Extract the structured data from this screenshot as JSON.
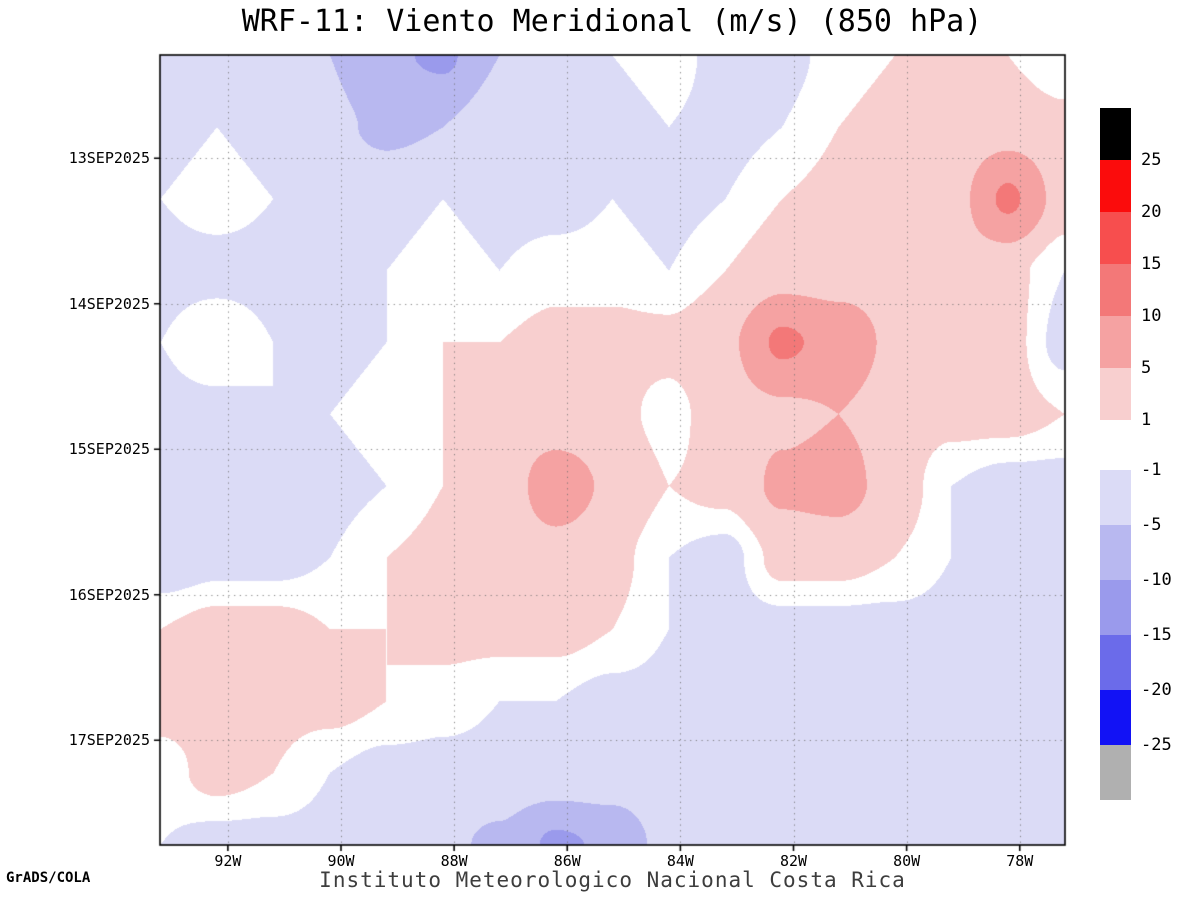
{
  "page": {
    "title": "WRF-11: Viento Meridional (m/s) (850 hPa)",
    "credit": "GrADS/COLA",
    "caption": "Instituto Meteorologico Nacional Costa Rica"
  },
  "chart_data": {
    "type": "heatmap",
    "title": "WRF-11: Viento Meridional (m/s) (850 hPa)",
    "variable": "meridional wind (viento meridional)",
    "units": "m/s",
    "level": "850 hPa",
    "xlabel": "longitude",
    "ylabel": "date (time increasing downward)",
    "x_ticks": [
      "92W",
      "90W",
      "88W",
      "86W",
      "84W",
      "82W",
      "80W",
      "78W"
    ],
    "y_ticks": [
      "13SEP2025",
      "14SEP2025",
      "15SEP2025",
      "16SEP2025",
      "17SEP2025"
    ],
    "x_tick_values_deg_west": [
      92,
      90,
      88,
      86,
      84,
      82,
      80,
      78
    ],
    "y_tick_values_days_sep2025": [
      13,
      14,
      15,
      16,
      17
    ],
    "x_range_deg_west": [
      93.2,
      77.2
    ],
    "y_range_days_sep2025": [
      12.29,
      17.72
    ],
    "gridlines": "dotted",
    "legend": {
      "position": "right",
      "labels_top_group": [
        "25",
        "20",
        "15",
        "10",
        "5",
        "1"
      ],
      "labels_bottom_group": [
        "-1",
        "-5",
        "-10",
        "-15",
        "-20",
        "-25"
      ],
      "levels": [
        -25,
        -20,
        -15,
        -10,
        -5,
        -1,
        1,
        5,
        10,
        15,
        20,
        25
      ],
      "bin_colors_low_to_high": [
        "#b0b0b0",
        "#1212f5",
        "#6b6bea",
        "#9a9aec",
        "#b8b8f0",
        "#dbdbf6",
        "#ffffff",
        "#f8cfcf",
        "#f5a2a2",
        "#f37878",
        "#f74e4e",
        "#fb0c0c",
        "#000000"
      ]
    },
    "field": {
      "comment": "Estimated meridional wind (m/s) on a coarse lon-time grid read from the shaded contours; rows are times top-to-bottom, columns are longitudes west-to-east.",
      "lon_deg_west": [
        93.2,
        92.2,
        91.2,
        90.2,
        89.2,
        88.2,
        87.2,
        86.2,
        85.2,
        84.2,
        83.2,
        82.2,
        81.2,
        80.2,
        79.2,
        78.2,
        77.2
      ],
      "time_days_sep2025": [
        12.29,
        12.78,
        13.28,
        13.77,
        14.26,
        14.76,
        15.25,
        15.75,
        16.24,
        16.73,
        17.23,
        17.72
      ],
      "values_by_time_row": [
        [
          -2,
          -2,
          -3,
          -5,
          -9,
          -11,
          -5,
          -2,
          -1,
          0,
          -2,
          -2,
          0,
          1,
          2,
          1,
          -1
        ],
        [
          -2,
          -1,
          -2,
          -4,
          -6,
          -5,
          -2,
          -2,
          -2,
          -1,
          -2,
          -1,
          1,
          2,
          2,
          3,
          2
        ],
        [
          -1,
          0,
          -1,
          -2,
          -2,
          -1,
          -2,
          -2,
          -1,
          -2,
          -1,
          1,
          2,
          2,
          3,
          11,
          3
        ],
        [
          -2,
          -2,
          -2,
          -2,
          -1,
          0,
          -1,
          0,
          0,
          -1,
          1,
          3,
          3,
          3,
          3,
          2,
          -1
        ],
        [
          -1,
          1,
          -1,
          -2,
          -1,
          1,
          1,
          2,
          2,
          2,
          4,
          11,
          8,
          4,
          3,
          2,
          -2
        ],
        [
          -2,
          -2,
          -1,
          -1,
          0,
          1,
          2,
          2,
          2,
          0,
          3,
          4,
          5,
          3,
          2,
          2,
          1
        ],
        [
          -2,
          -1,
          -2,
          -2,
          -1,
          1,
          2,
          8,
          4,
          1,
          2,
          6,
          7,
          3,
          -1,
          -2,
          -2
        ],
        [
          -3,
          -2,
          -2,
          -1,
          1,
          2,
          2,
          3,
          2,
          -1,
          -2,
          2,
          2,
          1,
          -1,
          -1,
          -2
        ],
        [
          1,
          2,
          2,
          1,
          1,
          2,
          2,
          2,
          1,
          -1,
          -2,
          -2,
          -2,
          -2,
          -2,
          -2,
          -3
        ],
        [
          2,
          2,
          2,
          2,
          1,
          0,
          -1,
          -1,
          -2,
          -2,
          -2,
          -2,
          -1,
          -2,
          -2,
          -2,
          -2
        ],
        [
          0,
          2,
          1,
          -1,
          -2,
          -2,
          -2,
          -2,
          -2,
          -1,
          -2,
          -2,
          -2,
          -1,
          -2,
          -2,
          -2
        ],
        [
          -1,
          -2,
          -2,
          -2,
          -3,
          -4,
          -6,
          -11,
          -9,
          -3,
          -2,
          -2,
          -2,
          -2,
          -1,
          -2,
          -2
        ]
      ]
    }
  }
}
